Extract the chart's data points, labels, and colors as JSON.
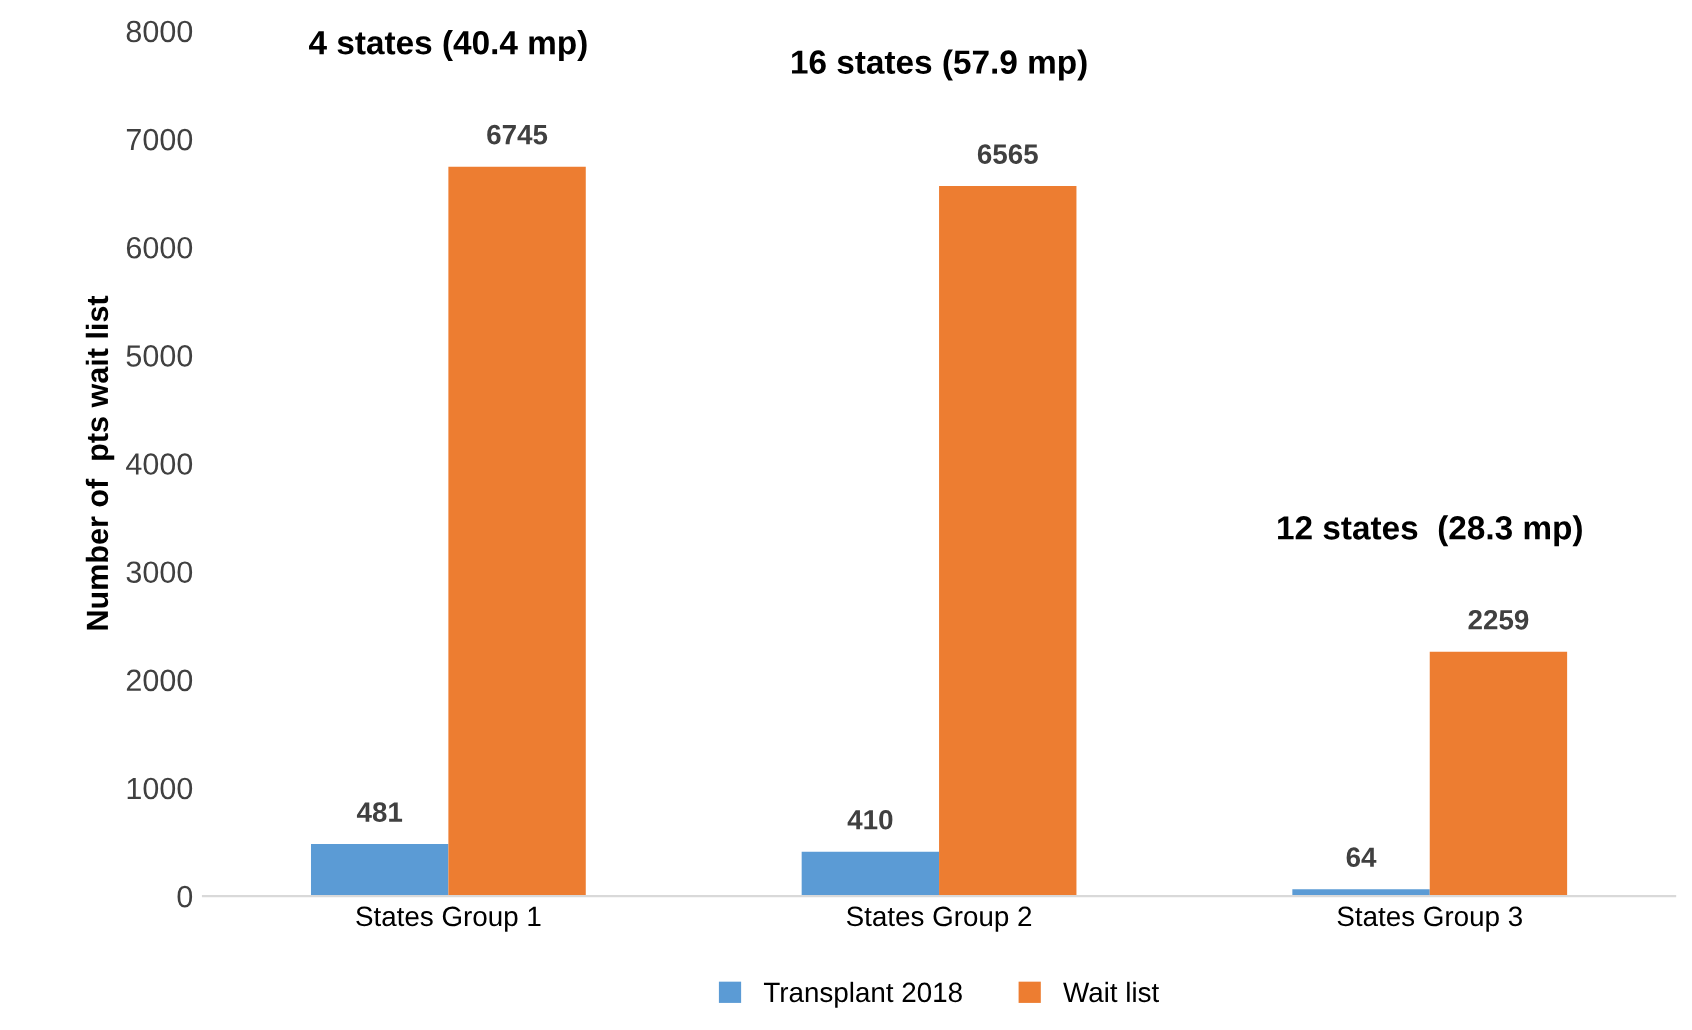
{
  "chart_data": {
    "type": "bar",
    "ylabel": "Number of  pts wait list",
    "categories": [
      "States Group 1",
      "States Group 2",
      "States Group 3"
    ],
    "series": [
      {
        "name": "Transplant 2018",
        "color": "#5b9bd5",
        "values": [
          481,
          410,
          64
        ]
      },
      {
        "name": "Wait list",
        "color": "#ed7d31",
        "values": [
          6745,
          6565,
          2259
        ]
      }
    ],
    "ylim": [
      0,
      8000
    ],
    "yticks": [
      0,
      1000,
      2000,
      3000,
      4000,
      5000,
      6000,
      7000,
      8000
    ],
    "data_labels": true,
    "grid": false,
    "legend": "bottom",
    "annotations": [
      "4 states (40.4 mp)",
      "16 states (57.9 mp)",
      "12 states  (28.3 mp)"
    ]
  }
}
